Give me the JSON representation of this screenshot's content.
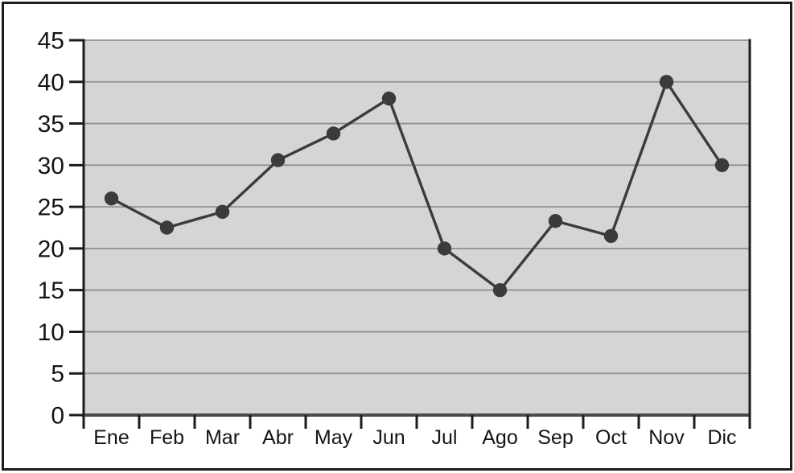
{
  "figure": {
    "background": "#ffffff",
    "border_color": "#1c1c1c"
  },
  "chart_data": {
    "type": "line",
    "title": "",
    "xlabel": "",
    "ylabel": "",
    "categories": [
      "Ene",
      "Feb",
      "Mar",
      "Abr",
      "May",
      "Jun",
      "Jul",
      "Ago",
      "Sep",
      "Oct",
      "Nov",
      "Dic"
    ],
    "values": [
      26,
      22.5,
      24.4,
      30.6,
      33.8,
      38,
      20,
      15,
      23.3,
      21.5,
      40,
      30
    ],
    "ylim": [
      0,
      45
    ],
    "yticks": [
      0,
      5,
      10,
      15,
      20,
      25,
      30,
      35,
      40,
      45
    ],
    "grid": true,
    "legend": false,
    "marker": "circle",
    "colors": {
      "plot_background": "#d5d5d5",
      "gridline": "#909090",
      "line": "#3b3b3b",
      "marker": "#3b3b3b",
      "axis": "#1c1c1c",
      "x_baseline": "#4a4a4a",
      "label_text": "#141414"
    }
  }
}
